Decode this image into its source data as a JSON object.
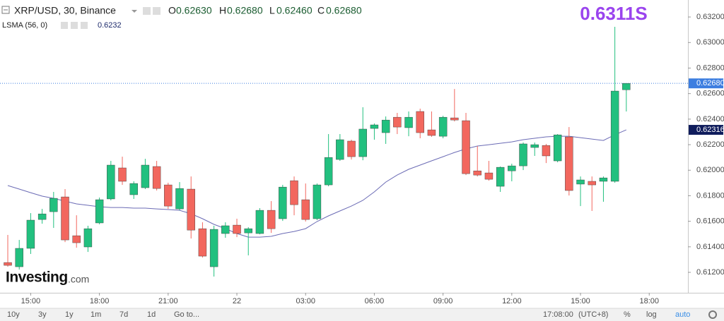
{
  "chart_data": {
    "type": "candlestick",
    "header": {
      "symbol": "XRP/USD, 30, Binance",
      "o_label": "O",
      "o_value": "0.62630",
      "h_label": "H",
      "h_value": "0.62680",
      "l_label": "L",
      "l_value": "0.62460",
      "c_label": "C",
      "c_value": "0.62680"
    },
    "indicator": {
      "name": "LSMA (56, 0)",
      "value": "0.6232"
    },
    "annotation": "0.6311S",
    "up_color": "#22c07f",
    "down_color": "#f2675e",
    "open": [
      0.61277,
      0.61244,
      0.61388,
      0.61614,
      0.61675,
      0.61791,
      0.61487,
      0.61399,
      0.61587,
      0.61775,
      0.62018,
      0.61808,
      0.61863,
      0.62029,
      0.61885,
      0.61697,
      0.61852,
      0.61542,
      0.61244,
      0.61504,
      0.6157,
      0.61509,
      0.61504,
      0.61686,
      0.6162,
      0.61918,
      0.61769,
      0.6162,
      0.61885,
      0.62084,
      0.62228,
      0.62106,
      0.62327,
      0.62294,
      0.62415,
      0.62333,
      0.6246,
      0.62316,
      0.62266,
      0.6241,
      0.62388,
      0.61995,
      0.61979,
      0.61874,
      0.61995,
      0.62034,
      0.62178,
      0.62194,
      0.62073,
      0.62261,
      0.61891,
      0.61913,
      0.61913,
      0.61913,
      0.6263
    ],
    "high": [
      0.61493,
      0.61454,
      0.61664,
      0.61697,
      0.6183,
      0.61852,
      0.61647,
      0.61565,
      0.61786,
      0.62073,
      0.62106,
      0.61913,
      0.62089,
      0.62073,
      0.61902,
      0.61907,
      0.61951,
      0.61592,
      0.61565,
      0.61592,
      0.6162,
      0.61554,
      0.61703,
      0.61758,
      0.61885,
      0.61951,
      0.61896,
      0.61896,
      0.62283,
      0.62283,
      0.62239,
      0.62493,
      0.62366,
      0.62421,
      0.62449,
      0.6246,
      0.62482,
      0.6246,
      0.62426,
      0.62636,
      0.62449,
      0.62189,
      0.62073,
      0.62029,
      0.62051,
      0.62217,
      0.62217,
      0.62206,
      0.62283,
      0.62338,
      0.61951,
      0.61951,
      0.61951,
      0.63123,
      0.6268
    ],
    "low": [
      0.61244,
      0.61222,
      0.61344,
      0.61581,
      0.61548,
      0.61437,
      0.61393,
      0.6136,
      0.61576,
      0.61764,
      0.61885,
      0.61775,
      0.61852,
      0.61841,
      0.61697,
      0.61686,
      0.61465,
      0.61316,
      0.61167,
      0.61471,
      0.61476,
      0.61333,
      0.61498,
      0.61509,
      0.61603,
      0.61647,
      0.61598,
      0.61609,
      0.61874,
      0.62073,
      0.62084,
      0.62078,
      0.62239,
      0.62206,
      0.62283,
      0.62266,
      0.6225,
      0.62261,
      0.6225,
      0.62382,
      0.61962,
      0.61951,
      0.61918,
      0.6183,
      0.61913,
      0.62001,
      0.62112,
      0.62056,
      0.62062,
      0.61802,
      0.61719,
      0.61681,
      0.61753,
      0.61902,
      0.6246
    ],
    "close": [
      0.61255,
      0.61388,
      0.61609,
      0.61658,
      0.6178,
      0.61454,
      0.61432,
      0.61542,
      0.61769,
      0.6204,
      0.61913,
      0.61896,
      0.6204,
      0.61857,
      0.61719,
      0.61857,
      0.61531,
      0.61327,
      0.61537,
      0.61565,
      0.61504,
      0.61542,
      0.61686,
      0.61542,
      0.61868,
      0.6173,
      0.61614,
      0.61885,
      0.621,
      0.62239,
      0.62106,
      0.62322,
      0.62355,
      0.62393,
      0.62338,
      0.62415,
      0.62294,
      0.62272,
      0.62415,
      0.62393,
      0.61973,
      0.61962,
      0.61929,
      0.62023,
      0.62034,
      0.62206,
      0.622,
      0.62112,
      0.62277,
      0.61841,
      0.61924,
      0.61885,
      0.6194,
      0.6262,
      0.6268
    ],
    "overlay": {
      "color": "#6b6bb5",
      "values": [
        0.6188,
        0.61852,
        0.61824,
        0.61797,
        0.6178,
        0.61758,
        0.61736,
        0.61725,
        0.61714,
        0.61708,
        0.61708,
        0.61703,
        0.61703,
        0.61697,
        0.61692,
        0.61686,
        0.61659,
        0.6162,
        0.61576,
        0.61542,
        0.61504,
        0.61476,
        0.61476,
        0.61482,
        0.61504,
        0.6152,
        0.61542,
        0.61598,
        0.61642,
        0.61681,
        0.61719,
        0.61764,
        0.6183,
        0.61907,
        0.61962,
        0.62007,
        0.6204,
        0.62073,
        0.62106,
        0.62139,
        0.62167,
        0.62189,
        0.622,
        0.62211,
        0.62222,
        0.62239,
        0.6225,
        0.62261,
        0.62266,
        0.62266,
        0.62255,
        0.62244,
        0.62233,
        0.62277,
        0.62316
      ]
    },
    "price_line": {
      "value": 0.6268,
      "label": "0.62680",
      "color": "#3d7ee0"
    },
    "overlay_tag": {
      "value": 0.62316,
      "label": "0.62316",
      "color": "#0f1c5c"
    },
    "xlim": [
      -0.68,
      59.38
    ],
    "xticks": [
      {
        "value": 2,
        "label": "15:00"
      },
      {
        "value": 8,
        "label": "18:00"
      },
      {
        "value": 14,
        "label": "21:00"
      },
      {
        "value": 20,
        "label": "22"
      },
      {
        "value": 26,
        "label": "03:00"
      },
      {
        "value": 32,
        "label": "06:00"
      },
      {
        "value": 38,
        "label": "09:00"
      },
      {
        "value": 44,
        "label": "12:00"
      },
      {
        "value": 50,
        "label": "15:00"
      },
      {
        "value": 56,
        "label": "18:00"
      }
    ],
    "ylim": [
      0.6104,
      0.63333
    ],
    "yticks": [
      {
        "value": 0.612,
        "label": "0.61200"
      },
      {
        "value": 0.614,
        "label": "0.61400"
      },
      {
        "value": 0.616,
        "label": "0.61600"
      },
      {
        "value": 0.618,
        "label": "0.61800"
      },
      {
        "value": 0.62,
        "label": "0.62000"
      },
      {
        "value": 0.622,
        "label": "0.62200"
      },
      {
        "value": 0.624,
        "label": "0.62400"
      },
      {
        "value": 0.626,
        "label": "0.62600"
      },
      {
        "value": 0.628,
        "label": "0.62800"
      },
      {
        "value": 0.63,
        "label": "0.63000"
      },
      {
        "value": 0.632,
        "label": "0.63200"
      }
    ],
    "logo": {
      "brand": "Investing",
      "suffix": ".com"
    },
    "toolbar": {
      "ranges": [
        "10y",
        "3y",
        "1y",
        "1m",
        "7d",
        "1d"
      ],
      "goto": "Go to...",
      "time": "17:08:00",
      "timezone": "(UTC+8)",
      "percent": "%",
      "log": "log",
      "auto": "auto"
    }
  }
}
